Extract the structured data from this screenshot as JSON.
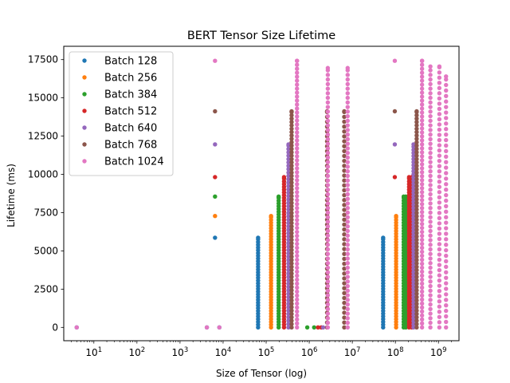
{
  "chart_data": {
    "type": "scatter",
    "title": "BERT Tensor Size Lifetime",
    "xlabel": "Size of Tensor (log)",
    "ylabel": "Lifetime (ms)",
    "x_scale": "log",
    "xlim": [
      2.0,
      3000000000
    ],
    "ylim": [
      -870,
      18370
    ],
    "y_ticks": [
      0,
      2500,
      5000,
      7500,
      10000,
      12500,
      15000,
      17500
    ],
    "y_tick_labels": [
      "0",
      "2500",
      "5000",
      "7500",
      "10000",
      "12500",
      "15000",
      "17500"
    ],
    "x_ticks": [
      {
        "value": 10,
        "base": "10",
        "exp": "1"
      },
      {
        "value": 100,
        "base": "10",
        "exp": "2"
      },
      {
        "value": 1000,
        "base": "10",
        "exp": "3"
      },
      {
        "value": 10000,
        "base": "10",
        "exp": "4"
      },
      {
        "value": 100000,
        "base": "10",
        "exp": "5"
      },
      {
        "value": 1000000,
        "base": "10",
        "exp": "6"
      },
      {
        "value": 10000000,
        "base": "10",
        "exp": "7"
      },
      {
        "value": 100000000,
        "base": "10",
        "exp": "8"
      },
      {
        "value": 1000000000,
        "base": "10",
        "exp": "9"
      }
    ],
    "legend_position": "upper-left",
    "series": [
      {
        "name": "Batch 128",
        "color": "#1f77b4",
        "columns": [
          {
            "x": 65000,
            "ymax": 5860,
            "step": 180
          },
          {
            "x": 52000000,
            "ymax": 5860,
            "step": 180
          }
        ],
        "points": [
          {
            "x": 4,
            "y": 0
          },
          {
            "x": 6500,
            "y": 5860
          },
          {
            "x": 4200,
            "y": 0
          },
          {
            "x": 8200,
            "y": 0
          }
        ]
      },
      {
        "name": "Batch 256",
        "color": "#ff7f0e",
        "columns": [
          {
            "x": 130000,
            "ymax": 7280,
            "step": 180
          },
          {
            "x": 104000000,
            "ymax": 7280,
            "step": 180
          }
        ],
        "points": [
          {
            "x": 6500,
            "y": 7280
          }
        ]
      },
      {
        "name": "Batch 384",
        "color": "#2ca02c",
        "columns": [
          {
            "x": 195000,
            "ymax": 8550,
            "step": 180
          },
          {
            "x": 156000000,
            "ymax": 8550,
            "step": 180
          },
          {
            "x": 175000000,
            "ymax": 8550,
            "step": 180
          }
        ],
        "points": [
          {
            "x": 6500,
            "y": 8550
          },
          {
            "x": 900000,
            "y": 0
          },
          {
            "x": 1300000,
            "y": 0
          }
        ]
      },
      {
        "name": "Batch 512",
        "color": "#d62728",
        "columns": [
          {
            "x": 260000,
            "ymax": 9820,
            "step": 180
          },
          {
            "x": 208000000,
            "ymax": 9820,
            "step": 180
          },
          {
            "x": 240000000,
            "ymax": 9820,
            "step": 180
          }
        ],
        "points": [
          {
            "x": 6500,
            "y": 9820
          },
          {
            "x": 1600000,
            "y": 0
          },
          {
            "x": 1900000,
            "y": 0
          },
          {
            "x": 97000000,
            "y": 9820
          }
        ]
      },
      {
        "name": "Batch 640",
        "color": "#9467bd",
        "columns": [
          {
            "x": 330000,
            "ymax": 11960,
            "step": 220
          },
          {
            "x": 264000000,
            "ymax": 11960,
            "step": 200
          }
        ],
        "points": [
          {
            "x": 6500,
            "y": 11960
          },
          {
            "x": 97000000,
            "y": 11960
          },
          {
            "x": 2100000,
            "y": 0
          }
        ]
      },
      {
        "name": "Batch 768",
        "color": "#8c564b",
        "columns": [
          {
            "x": 390000,
            "ymax": 14120,
            "step": 220
          },
          {
            "x": 312000000,
            "ymax": 14120,
            "step": 220
          },
          {
            "x": 2600000,
            "ymax": 14120,
            "step": 320
          },
          {
            "x": 6500000,
            "ymax": 14120,
            "step": 320
          }
        ],
        "points": [
          {
            "x": 6500,
            "y": 14120
          },
          {
            "x": 97000000,
            "y": 14120
          }
        ]
      },
      {
        "name": "Batch 1024",
        "color": "#e377c2",
        "columns": [
          {
            "x": 520000,
            "ymax": 17420,
            "step": 260
          },
          {
            "x": 416000000,
            "ymax": 17420,
            "step": 260
          },
          {
            "x": 2700000,
            "ymax": 16950,
            "step": 300
          },
          {
            "x": 7800000,
            "ymax": 16950,
            "step": 300
          },
          {
            "x": 650000000,
            "ymax": 17050,
            "step": 300
          },
          {
            "x": 1050000000,
            "ymax": 17050,
            "step": 340
          },
          {
            "x": 1500000000,
            "ymax": 16400,
            "step": 360
          }
        ],
        "points": [
          {
            "x": 4,
            "y": 0
          },
          {
            "x": 4200,
            "y": 0
          },
          {
            "x": 8200,
            "y": 0
          },
          {
            "x": 6500,
            "y": 17420
          },
          {
            "x": 97000000,
            "y": 17420
          }
        ]
      }
    ]
  }
}
